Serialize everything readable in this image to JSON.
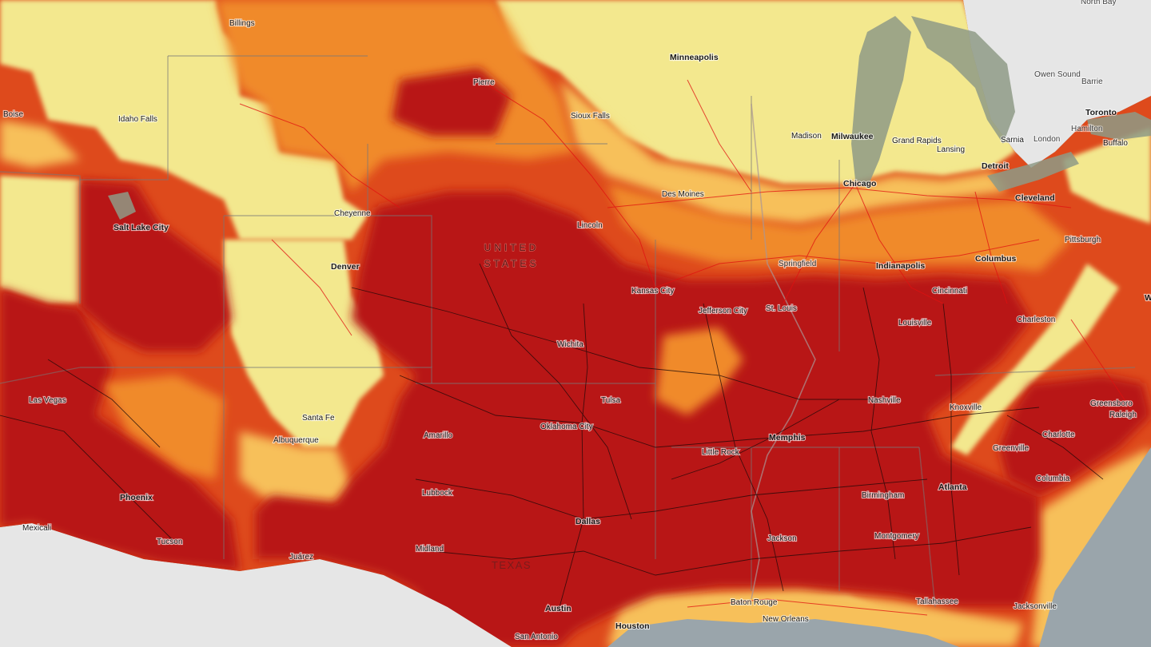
{
  "map": {
    "country_label_line1": "UNITED",
    "country_label_line2": "STATES",
    "state_label": "TEXAS",
    "colors": {
      "water": "#9aa5ab",
      "land_outside": "#e6e6e6",
      "lake": "#8e9a86",
      "class_1": "#f3e88e",
      "class_2": "#f7c05a",
      "class_3": "#f08a2a",
      "class_4": "#de4a1c",
      "class_5": "#b81417",
      "road_black": "#1a0808",
      "road_red": "#e01010"
    },
    "cities": [
      "Billings",
      "Pierre",
      "Minneapolis",
      "Boise",
      "Idaho Falls",
      "Sioux Falls",
      "Madison",
      "Milwaukee",
      "Grand Rapids",
      "Lansing",
      "Sarnia",
      "Detroit",
      "Owen Sound",
      "Barrie",
      "Toronto",
      "Hamilton",
      "London",
      "Buffalo",
      "Cheyenne",
      "Des Moines",
      "Chicago",
      "Cleveland",
      "Salt Lake City",
      "Lincoln",
      "Denver",
      "Springfield",
      "Indianapolis",
      "Columbus",
      "Pittsburgh",
      "Kansas City",
      "Jefferson City",
      "St. Louis",
      "Cincinnati",
      "Louisville",
      "Charleston",
      "Wichita",
      "Las Vegas",
      "Tulsa",
      "Nashville",
      "Knoxville",
      "Greensboro",
      "Raleigh",
      "Santa Fe",
      "Oklahoma City",
      "Memphis",
      "Amarillo",
      "Albuquerque",
      "Little Rock",
      "Greenville",
      "Charlotte",
      "Atlanta",
      "Columbia",
      "Lubbock",
      "Phoenix",
      "Birmingham",
      "Dallas",
      "Mexicali",
      "Montgomery",
      "Jackson",
      "Tucson",
      "Midland",
      "Juárez",
      "Baton Rouge",
      "Tallahassee",
      "Austin",
      "New Orleans",
      "Jacksonville",
      "Houston",
      "San Antonio",
      "North Bay",
      "W"
    ]
  }
}
